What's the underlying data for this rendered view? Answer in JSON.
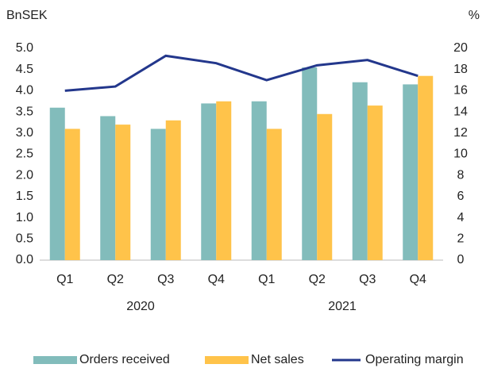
{
  "chart_data": {
    "type": "bar",
    "y_label": "BnSEK",
    "y2_label": "%",
    "categories": [
      "Q1",
      "Q2",
      "Q3",
      "Q4",
      "Q1",
      "Q2",
      "Q3",
      "Q4"
    ],
    "groups": [
      "2020",
      "2021"
    ],
    "series": [
      {
        "name": "Orders received",
        "type": "bar",
        "color": "#82bcbb",
        "values": [
          3.6,
          3.4,
          3.1,
          3.7,
          3.75,
          4.55,
          4.2,
          4.15
        ]
      },
      {
        "name": "Net sales",
        "type": "bar",
        "color": "#ffc34a",
        "values": [
          3.1,
          3.2,
          3.3,
          3.75,
          3.1,
          3.45,
          3.65,
          4.35
        ]
      },
      {
        "name": "Operating margin",
        "type": "line",
        "axis": "y2",
        "color": "#23378c",
        "values": [
          16,
          16.4,
          19.3,
          18.6,
          17,
          18.4,
          18.9,
          17.4
        ]
      }
    ],
    "ylim": [
      0,
      5
    ],
    "yticks": [
      {
        "value": 0,
        "label": "0.0"
      },
      0.5,
      {
        "value": 1,
        "label": "1.0"
      },
      1.5,
      {
        "value": 2,
        "label": "2.0"
      },
      2.5,
      {
        "value": 3,
        "label": "3.0"
      },
      3.5,
      {
        "value": 4,
        "label": "4.0"
      },
      4.5,
      {
        "value": 5,
        "label": "5.0"
      }
    ],
    "y2lim": [
      0,
      20
    ],
    "y2ticks": [
      0,
      2,
      4,
      6,
      8,
      10,
      12,
      14,
      16,
      18,
      20
    ],
    "grid": false,
    "legend": "bottom"
  }
}
